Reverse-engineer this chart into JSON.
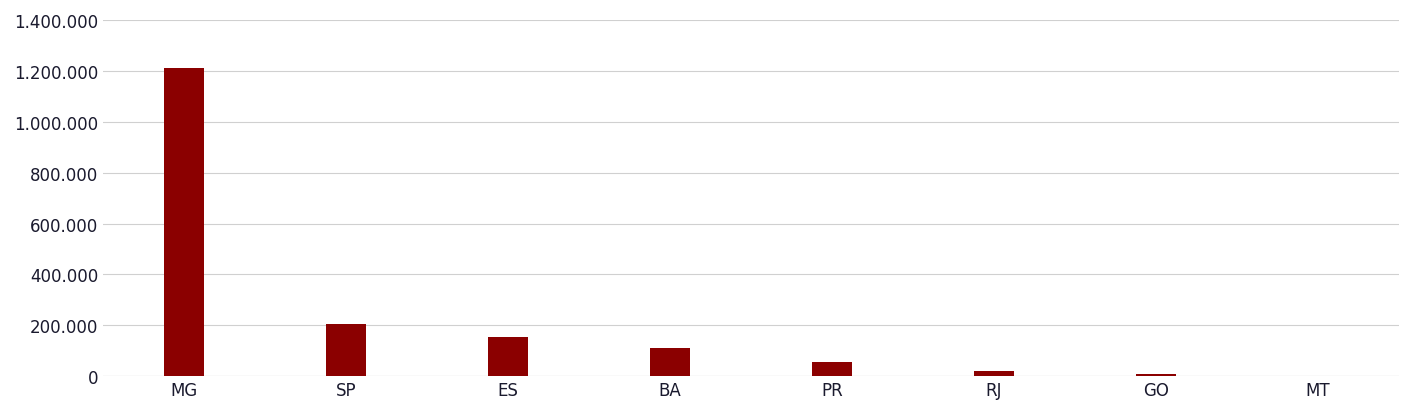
{
  "categories": [
    "MG",
    "SP",
    "ES",
    "BA",
    "PR",
    "RJ",
    "GO",
    "MT"
  ],
  "values": [
    1210000,
    205000,
    155000,
    110000,
    55000,
    20000,
    10000,
    1500
  ],
  "bar_color": "#8B0000",
  "ylim": [
    0,
    1400000
  ],
  "yticks": [
    0,
    200000,
    400000,
    600000,
    800000,
    1000000,
    1200000,
    1400000
  ],
  "background_color": "#ffffff",
  "grid_color": "#d0d0d0",
  "tick_label_color": "#1a1a2e",
  "bar_width": 0.25,
  "figsize": [
    14.13,
    4.14
  ],
  "dpi": 100
}
